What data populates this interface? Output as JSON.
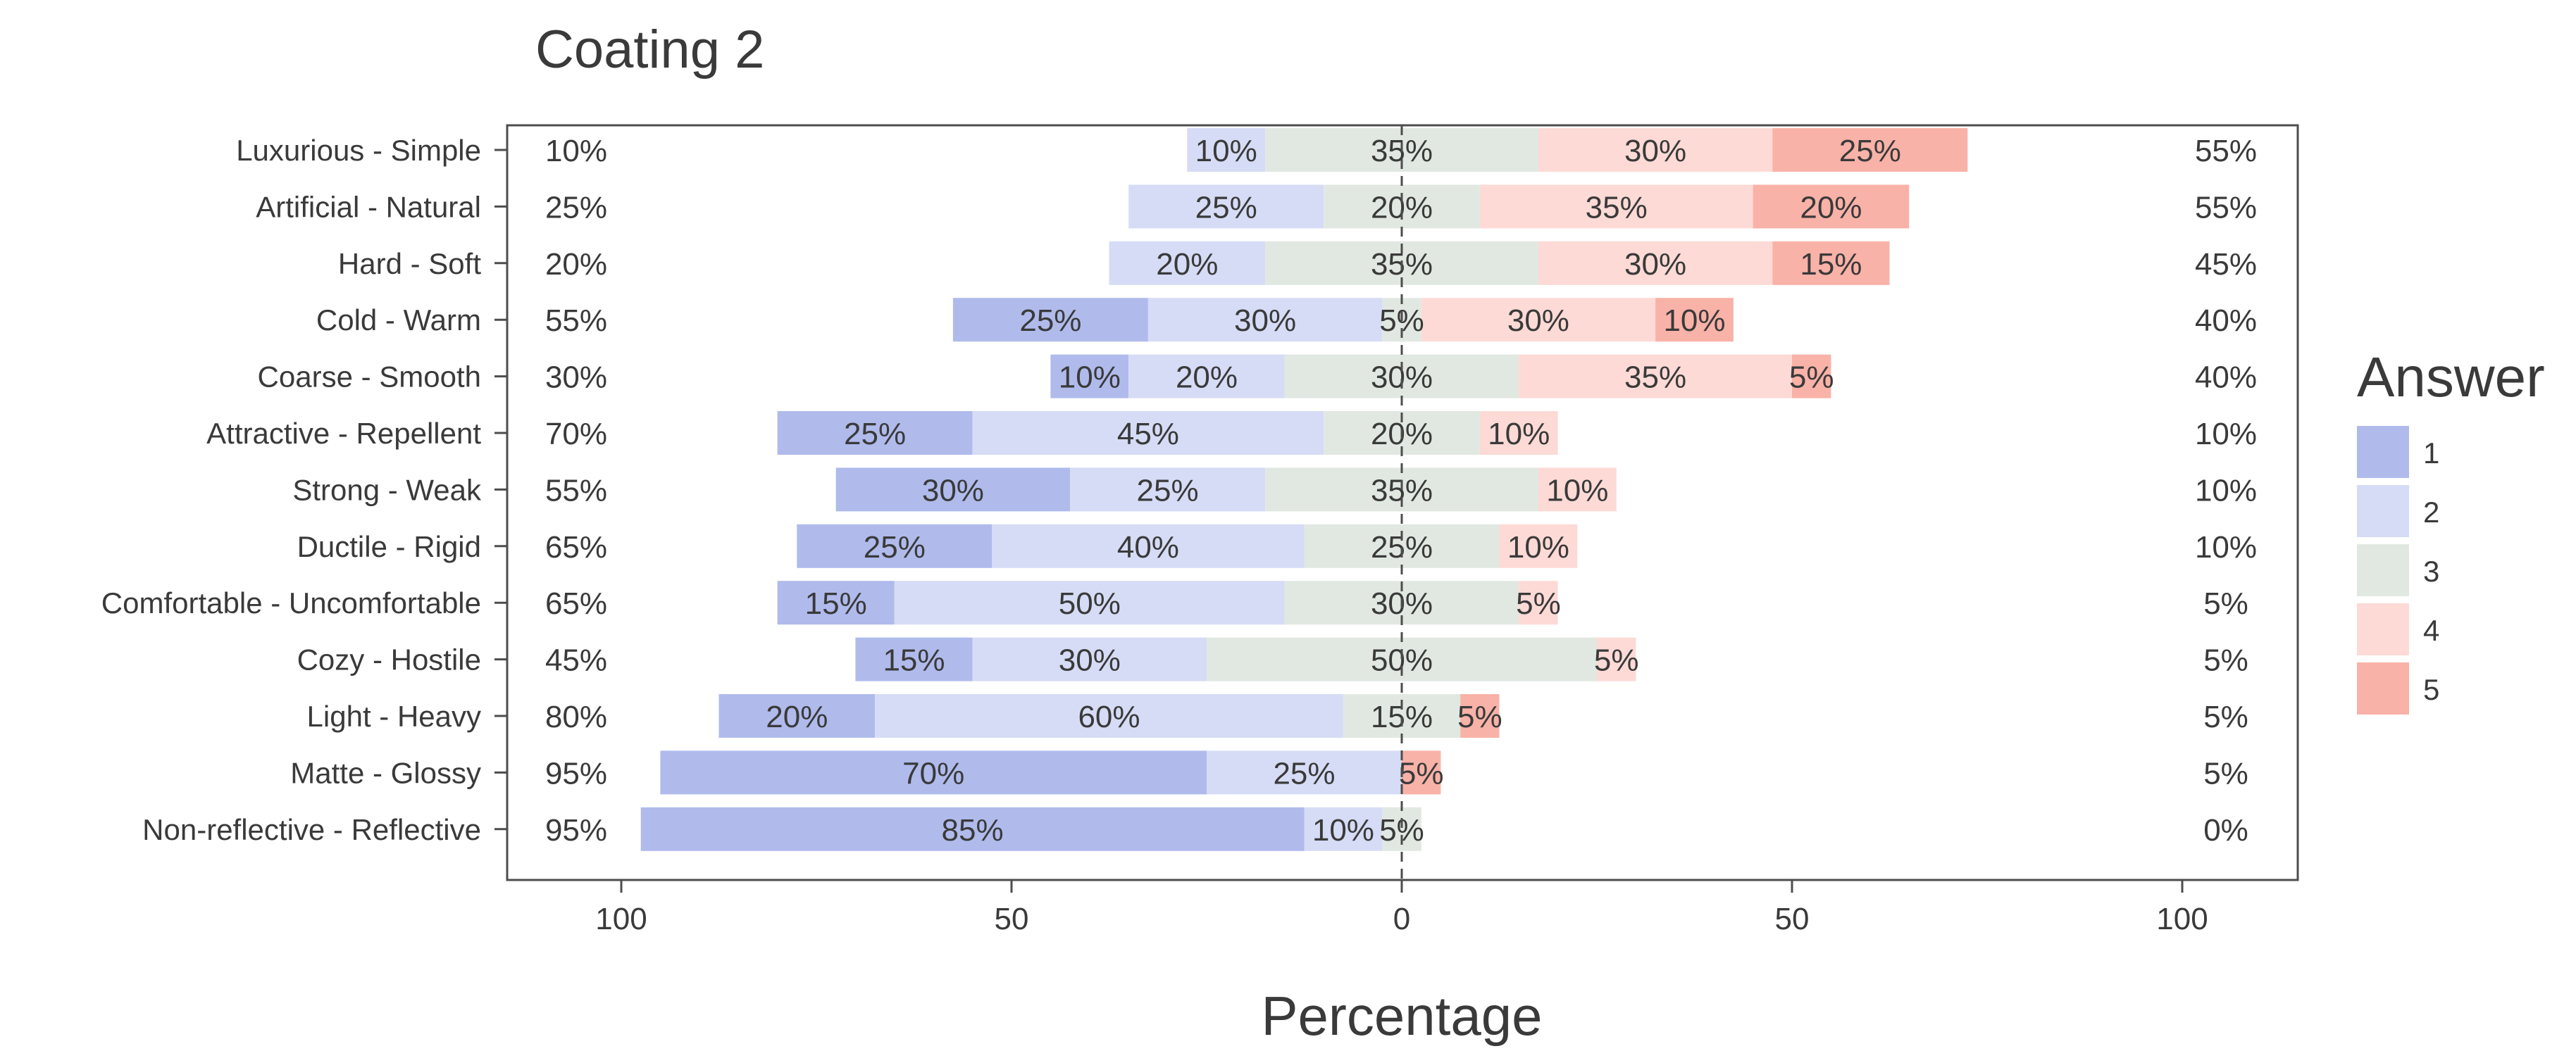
{
  "chart_data": {
    "type": "bar",
    "subtype": "diverging-stacked-horizontal",
    "title": "Coating 2",
    "xlabel": "Percentage",
    "ylabel": "",
    "xlim": [
      -100,
      100
    ],
    "xticks": [
      -100,
      -50,
      0,
      50,
      100
    ],
    "xtick_labels": [
      "100",
      "50",
      "0",
      "50",
      "100"
    ],
    "legend": {
      "title": "Answer",
      "placement": "right",
      "entries": [
        "1",
        "2",
        "3",
        "4",
        "5"
      ]
    },
    "colors": {
      "1": "#b0bbec",
      "2": "#d6dcf5",
      "3": "#e1e8e2",
      "4": "#fddad6",
      "5": "#f9b2a8",
      "axis": "#4d4d4d",
      "text": "#3a3a3a"
    },
    "categories": [
      "Luxurious - Simple",
      "Artificial - Natural",
      "Hard - Soft",
      "Cold - Warm",
      "Coarse - Smooth",
      "Attractive - Repellent",
      "Strong - Weak",
      "Ductile - Rigid",
      "Comfortable - Uncomfortable",
      "Cozy - Hostile",
      "Light - Heavy",
      "Matte - Glossy",
      "Non-reflective - Reflective"
    ],
    "series": [
      {
        "name": "1",
        "values": [
          0,
          0,
          0,
          25,
          10,
          25,
          30,
          25,
          15,
          15,
          20,
          70,
          85
        ]
      },
      {
        "name": "2",
        "values": [
          10,
          25,
          20,
          30,
          20,
          45,
          25,
          40,
          50,
          30,
          60,
          25,
          10
        ]
      },
      {
        "name": "3",
        "values": [
          35,
          20,
          35,
          5,
          30,
          20,
          35,
          25,
          30,
          50,
          15,
          0,
          5
        ]
      },
      {
        "name": "4",
        "values": [
          30,
          35,
          30,
          30,
          35,
          10,
          10,
          10,
          5,
          5,
          0,
          0,
          0
        ]
      },
      {
        "name": "5",
        "values": [
          25,
          20,
          15,
          10,
          5,
          0,
          0,
          0,
          0,
          0,
          5,
          5,
          0
        ]
      }
    ],
    "segment_labels": [
      [
        "",
        "10%",
        "35%",
        "30%",
        "25%"
      ],
      [
        "",
        "25%",
        "20%",
        "35%",
        "20%"
      ],
      [
        "",
        "20%",
        "35%",
        "30%",
        "15%"
      ],
      [
        "25%",
        "30%",
        "5%",
        "30%",
        "10%"
      ],
      [
        "10%",
        "20%",
        "30%",
        "35%",
        "5%"
      ],
      [
        "25%",
        "45%",
        "20%",
        "10%",
        ""
      ],
      [
        "30%",
        "25%",
        "35%",
        "10%",
        ""
      ],
      [
        "25%",
        "40%",
        "25%",
        "10%",
        ""
      ],
      [
        "15%",
        "50%",
        "30%",
        "5%",
        ""
      ],
      [
        "15%",
        "30%",
        "50%",
        "5%",
        ""
      ],
      [
        "20%",
        "60%",
        "15%",
        "",
        "5%"
      ],
      [
        "70%",
        "25%",
        "",
        "",
        "5%"
      ],
      [
        "85%",
        "10%",
        "5%",
        "",
        ""
      ]
    ],
    "left_totals": [
      "10%",
      "25%",
      "20%",
      "55%",
      "30%",
      "70%",
      "55%",
      "65%",
      "65%",
      "45%",
      "80%",
      "95%",
      "95%"
    ],
    "right_totals": [
      "55%",
      "55%",
      "45%",
      "40%",
      "40%",
      "10%",
      "10%",
      "10%",
      "5%",
      "5%",
      "5%",
      "5%",
      "0%"
    ],
    "grid": false
  }
}
